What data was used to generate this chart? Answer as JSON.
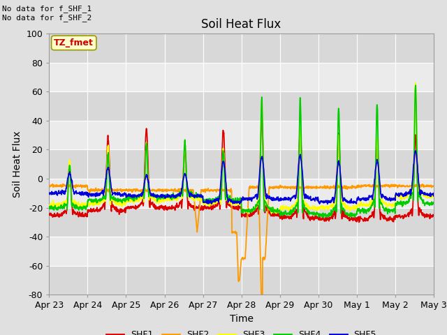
{
  "title": "Soil Heat Flux",
  "xlabel": "Time",
  "ylabel": "Soil Heat Flux",
  "ylim": [
    -80,
    100
  ],
  "yticks": [
    -80,
    -60,
    -40,
    -20,
    0,
    20,
    40,
    60,
    80,
    100
  ],
  "xtick_labels": [
    "Apr 23",
    "Apr 24",
    "Apr 25",
    "Apr 26",
    "Apr 27",
    "Apr 28",
    "Apr 29",
    "Apr 30",
    "May 1",
    "May 2",
    "May 3"
  ],
  "legend_labels": [
    "SHF1",
    "SHF2",
    "SHF3",
    "SHF4",
    "SHF5"
  ],
  "shf1_color": "#dd0000",
  "shf2_color": "#ff9900",
  "shf3_color": "#ffff00",
  "shf4_color": "#00cc00",
  "shf5_color": "#0000dd",
  "annotation_text": "No data for f_SHF_1\nNo data for f_SHF_2",
  "tz_label": "TZ_fmet",
  "bg_color": "#e0e0e0",
  "band_light": "#ebebeb",
  "band_dark": "#d8d8d8",
  "title_fontsize": 12,
  "axis_fontsize": 10,
  "tick_fontsize": 9,
  "legend_fontsize": 9
}
